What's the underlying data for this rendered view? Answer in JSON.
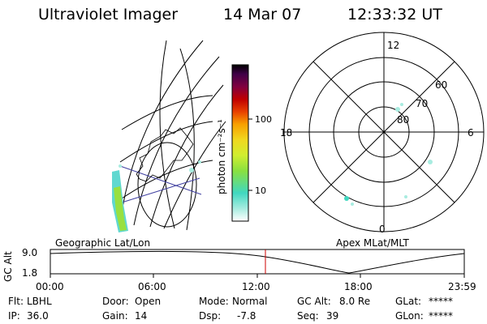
{
  "header": {
    "instrument": "Ultraviolet Imager",
    "date": "14 Mar 07",
    "time": "12:33:32 UT"
  },
  "colorbar": {
    "unit_label": "photon cm⁻²s⁻¹",
    "tick_labels": [
      "100",
      "10"
    ],
    "scale": "log",
    "gradient_colors": [
      "#ffffff",
      "#a8ece0",
      "#40d8c0",
      "#88e040",
      "#d0ee30",
      "#f0d820",
      "#f8a000",
      "#e84000",
      "#c00000",
      "#800040",
      "#400048",
      "#000000"
    ]
  },
  "polar_plot": {
    "clock_labels": [
      "12",
      "18",
      "6",
      "0"
    ],
    "latitude_labels": [
      "60",
      "70",
      "80"
    ]
  },
  "altitude_plot": {
    "left_title": "Geographic Lat/Lon",
    "right_title": "Apex MLat/MLT",
    "y_axis_label": "GC Alt",
    "y_ticks": [
      "9.0",
      "1.8"
    ],
    "x_ticks": [
      "00:00",
      "06:00",
      "12:00",
      "18:00",
      "23:59"
    ],
    "marker_color": "#cc0000"
  },
  "status": {
    "filter_label": "Flt:",
    "filter_value": "LBHL",
    "ip_label": "IP:",
    "ip_value": "36.0",
    "door_label": "Door:",
    "door_value": "Open",
    "gain_label": "Gain:",
    "gain_value": "14",
    "mode_label": "Mode:",
    "mode_value": "Normal",
    "dsp_label": "Dsp:",
    "dsp_value": "-7.8",
    "gcalt_label": "GC Alt:",
    "gcalt_value": "8.0 Re",
    "seq_label": "Seq:",
    "seq_value": "39",
    "glat_label": "GLat:",
    "glat_value": "*****",
    "glon_label": "GLon:",
    "glon_value": "*****"
  }
}
